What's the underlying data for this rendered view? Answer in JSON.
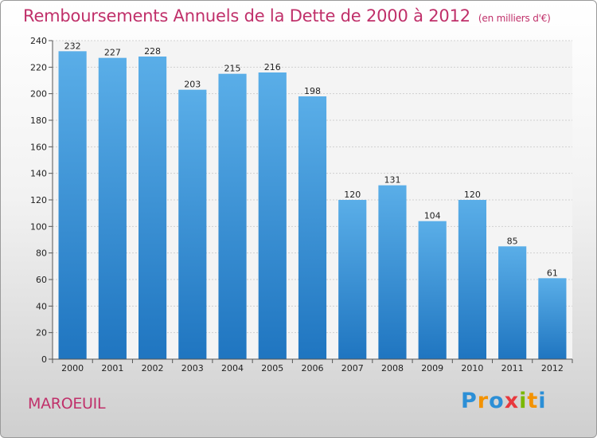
{
  "header": {
    "title": "Remboursements Annuels de la Dette de 2000 à 2012",
    "subtitle": "(en milliers d'€)"
  },
  "footer": {
    "city": "MAROEUIL",
    "logo": {
      "letters": [
        "P",
        "r",
        "o",
        "x",
        "i",
        "t",
        "i"
      ],
      "colors": [
        "#2c8fd6",
        "#f39200",
        "#2c8fd6",
        "#e8383d",
        "#7ab800",
        "#f39200",
        "#2c8fd6"
      ]
    }
  },
  "chart_data": {
    "type": "bar",
    "title": "Remboursements Annuels de la Dette de 2000 à 2012",
    "categories": [
      "2000",
      "2001",
      "2002",
      "2003",
      "2004",
      "2005",
      "2006",
      "2007",
      "2008",
      "2009",
      "2010",
      "2011",
      "2012"
    ],
    "values": [
      232,
      227,
      228,
      203,
      215,
      216,
      198,
      120,
      131,
      104,
      120,
      85,
      61
    ],
    "ylim": [
      0,
      240
    ],
    "yticks": [
      0,
      20,
      40,
      60,
      80,
      100,
      120,
      140,
      160,
      180,
      200,
      220,
      240
    ],
    "grid": true,
    "bar_color_top": "#5aaee8",
    "bar_color_bottom": "#1f75c0"
  }
}
